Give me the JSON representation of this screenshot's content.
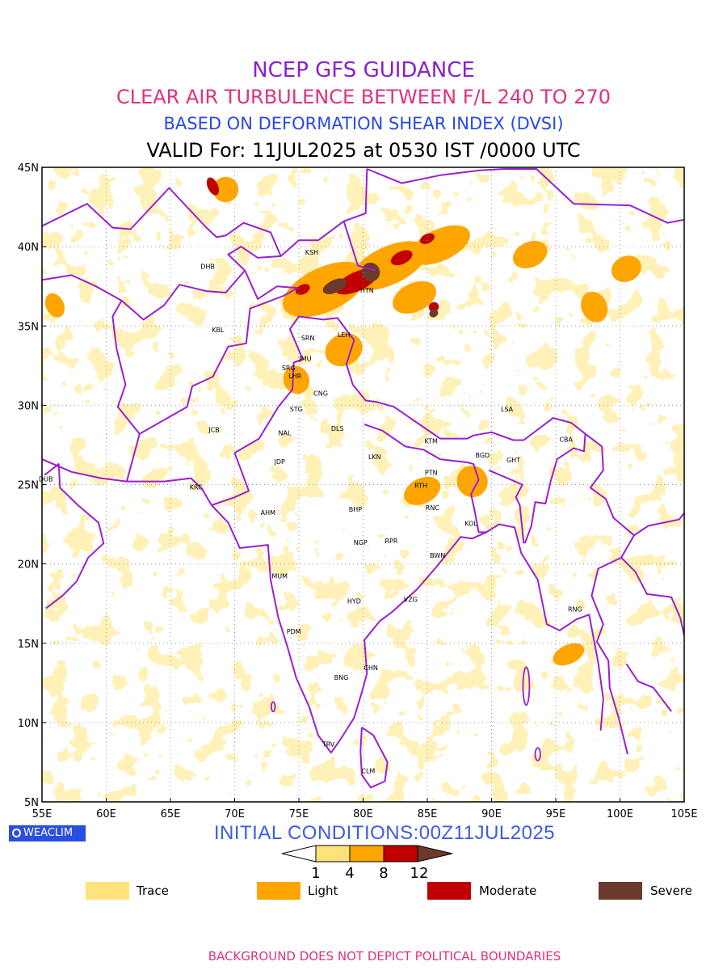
{
  "titles": {
    "line1": "NCEP GFS GUIDANCE",
    "line2": "CLEAR AIR TURBULENCE BETWEEN F/L 240 TO 270",
    "line3": "BASED ON DEFORMATION SHEAR INDEX (DVSI)",
    "line4": "VALID For: 11JUL2025 at 0530 IST /0000 UTC"
  },
  "map": {
    "lon_range": [
      55,
      105
    ],
    "lat_range": [
      5,
      45
    ],
    "x_ticks": [
      "55E",
      "60E",
      "65E",
      "70E",
      "75E",
      "80E",
      "85E",
      "90E",
      "95E",
      "100E",
      "105E"
    ],
    "y_ticks": [
      "45N",
      "40N",
      "35N",
      "30N",
      "25N",
      "20N",
      "15N",
      "10N",
      "5N"
    ],
    "grid_lines": "dotted",
    "boundary_color": "#9a1fcf",
    "cities": [
      {
        "code": "KSH",
        "lon": 76.0,
        "lat": 39.5
      },
      {
        "code": "DHB",
        "lon": 67.9,
        "lat": 38.6
      },
      {
        "code": "HTN",
        "lon": 80.3,
        "lat": 37.1
      },
      {
        "code": "KBL",
        "lon": 68.7,
        "lat": 34.6
      },
      {
        "code": "SRN",
        "lon": 75.7,
        "lat": 34.1
      },
      {
        "code": "LEH",
        "lon": 78.5,
        "lat": 34.3
      },
      {
        "code": "JMU",
        "lon": 75.5,
        "lat": 32.8
      },
      {
        "code": "SRG",
        "lon": 74.2,
        "lat": 32.2
      },
      {
        "code": "LHR",
        "lon": 74.7,
        "lat": 31.7
      },
      {
        "code": "CNG",
        "lon": 76.7,
        "lat": 30.6
      },
      {
        "code": "LSA",
        "lon": 91.2,
        "lat": 29.6
      },
      {
        "code": "STG",
        "lon": 74.8,
        "lat": 29.6
      },
      {
        "code": "JCB",
        "lon": 68.4,
        "lat": 28.3
      },
      {
        "code": "NAL",
        "lon": 73.9,
        "lat": 28.1
      },
      {
        "code": "DLS",
        "lon": 78.0,
        "lat": 28.4
      },
      {
        "code": "KTM",
        "lon": 85.3,
        "lat": 27.6
      },
      {
        "code": "CBA",
        "lon": 95.8,
        "lat": 27.7
      },
      {
        "code": "BGD",
        "lon": 89.3,
        "lat": 26.7
      },
      {
        "code": "LKN",
        "lon": 80.9,
        "lat": 26.6
      },
      {
        "code": "JDP",
        "lon": 73.5,
        "lat": 26.3
      },
      {
        "code": "GHT",
        "lon": 91.7,
        "lat": 26.4
      },
      {
        "code": "DUB",
        "lon": 55.3,
        "lat": 25.2
      },
      {
        "code": "PTN",
        "lon": 85.3,
        "lat": 25.6
      },
      {
        "code": "KRC",
        "lon": 67.0,
        "lat": 24.7
      },
      {
        "code": "RTH",
        "lon": 84.5,
        "lat": 24.8
      },
      {
        "code": "BHP",
        "lon": 79.4,
        "lat": 23.3
      },
      {
        "code": "AHM",
        "lon": 72.6,
        "lat": 23.1
      },
      {
        "code": "RNC",
        "lon": 85.4,
        "lat": 23.4
      },
      {
        "code": "KOL",
        "lon": 88.4,
        "lat": 22.4
      },
      {
        "code": "NGP",
        "lon": 79.8,
        "lat": 21.2
      },
      {
        "code": "RPR",
        "lon": 82.2,
        "lat": 21.3
      },
      {
        "code": "BWN",
        "lon": 85.8,
        "lat": 20.4
      },
      {
        "code": "MUM",
        "lon": 73.5,
        "lat": 19.1
      },
      {
        "code": "HYD",
        "lon": 79.3,
        "lat": 17.5
      },
      {
        "code": "VZG",
        "lon": 83.7,
        "lat": 17.6
      },
      {
        "code": "RNG",
        "lon": 96.5,
        "lat": 17.0
      },
      {
        "code": "PDM",
        "lon": 74.6,
        "lat": 15.6
      },
      {
        "code": "CHN",
        "lon": 80.6,
        "lat": 13.3
      },
      {
        "code": "BNG",
        "lon": 78.3,
        "lat": 12.7
      },
      {
        "code": "TRV",
        "lon": 77.3,
        "lat": 8.5
      },
      {
        "code": "CLM",
        "lon": 80.4,
        "lat": 6.8
      }
    ]
  },
  "footer_left": {
    "logo_text": "WEACLIM"
  },
  "initial_conditions": "INITIAL CONDITIONS:00Z11JUL2025",
  "colorbar": {
    "thresholds": [
      "1",
      "4",
      "8",
      "12"
    ],
    "colors": [
      "#ffe27a",
      "#ffa500",
      "#c00000",
      "#6b3a2a"
    ]
  },
  "legend": [
    {
      "label": "Trace",
      "color": "#ffe27a"
    },
    {
      "label": "Light",
      "color": "#ffa500"
    },
    {
      "label": "Moderate",
      "color": "#c00000"
    },
    {
      "label": "Severe",
      "color": "#6b3a2a"
    }
  ],
  "footer": "BACKGROUND DOES NOT DEPICT POLITICAL BOUNDARIES"
}
